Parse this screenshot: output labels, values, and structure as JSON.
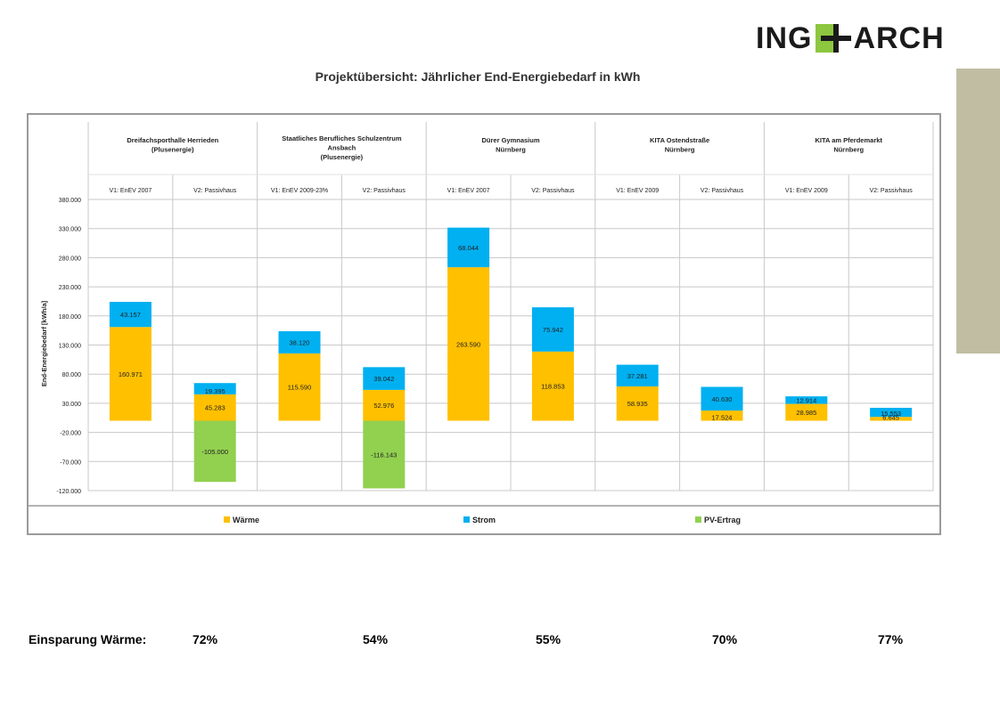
{
  "logo": {
    "left": "ING",
    "right": "ARCH",
    "plus_color": "#8dc63f"
  },
  "side_bar_color": "#c0bda3",
  "chart_data": {
    "type": "bar",
    "stacked": true,
    "title": "Projektübersicht: Jährlicher End-Energiebedarf in kWh",
    "ylabel": "End-Energiebedarf  [kWh/a]",
    "xlabel": "",
    "ylim": [
      -120000,
      380000
    ],
    "yticks": [
      380000,
      330000,
      280000,
      230000,
      180000,
      130000,
      80000,
      30000,
      -20000,
      -70000,
      -120000
    ],
    "ytick_labels": [
      "380.000",
      "330.000",
      "280.000",
      "230.000",
      "180.000",
      "130.000",
      "80.000",
      "30.000",
      "-20.000",
      "-70.000",
      "-120.000"
    ],
    "grid": true,
    "legend_position": "bottom",
    "groups": [
      {
        "name_lines": [
          "Dreifachsporthalle Herrieden",
          "(Plusenergie)"
        ],
        "variants": [
          "V1: EnEV 2007",
          "V2: Passivhaus"
        ]
      },
      {
        "name_lines": [
          "Staatliches Berufliches Schulzentrum",
          "Ansbach",
          "(Plusenergie)"
        ],
        "variants": [
          "V1: EnEV 2009-23%",
          "V2: Passivhaus"
        ]
      },
      {
        "name_lines": [
          "Dürer Gymnasium",
          "Nürnberg"
        ],
        "variants": [
          "V1: EnEV 2007",
          "V2: Passivhaus"
        ]
      },
      {
        "name_lines": [
          "KITA Ostendstraße",
          "Nürnberg"
        ],
        "variants": [
          "V1: EnEV 2009",
          "V2: Passivhaus"
        ]
      },
      {
        "name_lines": [
          "KITA am Pferdemarkt",
          "Nürnberg"
        ],
        "variants": [
          "V1: EnEV 2009",
          "V2: Passivhaus"
        ]
      }
    ],
    "series": [
      {
        "name": "Wärme",
        "color": "#ffc000",
        "values": [
          160971,
          45283,
          115590,
          52976,
          263590,
          118853,
          58935,
          17524,
          28985,
          6645
        ],
        "labels": [
          "160.971",
          "45.283",
          "115.590",
          "52.976",
          "263.590",
          "118.853",
          "58.935",
          "17.524",
          "28.985",
          "6.645"
        ]
      },
      {
        "name": "Strom",
        "color": "#00b0f0",
        "values": [
          43157,
          19395,
          38120,
          39042,
          68044,
          75942,
          37281,
          40630,
          12914,
          15553
        ],
        "labels": [
          "43.157",
          "19.395",
          "38.120",
          "39.042",
          "68.044",
          "75.942",
          "37.281",
          "40.630",
          "12.914",
          "15.553"
        ]
      },
      {
        "name": "PV-Ertrag",
        "color": "#92d050",
        "values": [
          0,
          -105000,
          0,
          -116143,
          0,
          0,
          0,
          0,
          0,
          0
        ],
        "labels": [
          "",
          "-105.000",
          "",
          "-116.143",
          "",
          "",
          "",
          "",
          "",
          ""
        ]
      }
    ]
  },
  "savings": {
    "label": "Einsparung Wärme:",
    "values": [
      "72%",
      "54%",
      "55%",
      "70%",
      "77%"
    ]
  }
}
